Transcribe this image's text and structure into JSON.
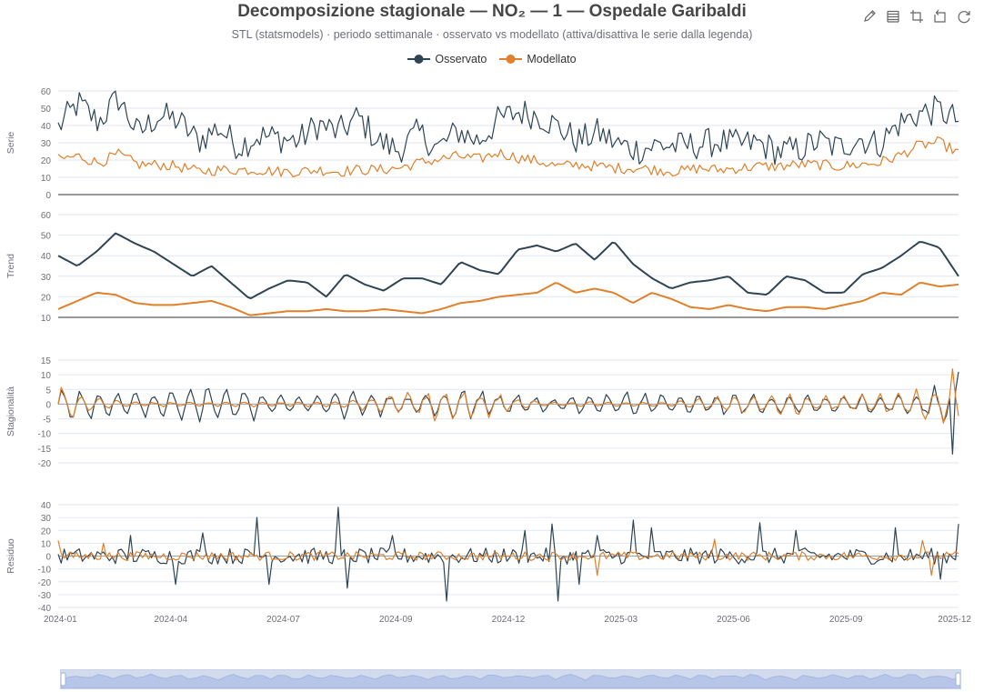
{
  "title": "Decomposizione stagionale — NO₂ — 1 — Ospedale Garibaldi",
  "subtitle": "STL (statsmodels) · periodo settimanale · osservato vs modellato (attiva/disattiva le serie dalla legenda)",
  "toolbox": {
    "icons": [
      "pencil-icon",
      "data-view-icon",
      "zoom-icon",
      "zoom-reset-icon",
      "restore-icon"
    ]
  },
  "colors": {
    "observed": "#2f4554",
    "modeled": "#e0802a",
    "grid": "#e0e6f1",
    "axis": "#6e7079",
    "baseline": "#333333",
    "zoom_fill": "#d2dbee"
  },
  "legend": {
    "placement": "top-center",
    "items": [
      {
        "label": "Osservato",
        "color": "#2f4554"
      },
      {
        "label": "Modellato",
        "color": "#e0802a"
      }
    ]
  },
  "x_axis": {
    "ticks": [
      "2024-01",
      "2024-04",
      "2024-07",
      "2024-09",
      "2024-12",
      "2025-03",
      "2025-06",
      "2025-09",
      "2025-12"
    ],
    "range": [
      "2024-01-01",
      "2025-12-31"
    ]
  },
  "chart_data": [
    {
      "type": "line",
      "ylabel": "Serie",
      "ylim": [
        0,
        60
      ],
      "yticks": [
        0,
        10,
        20,
        30,
        40,
        50,
        60
      ],
      "grid": true,
      "kind": "series",
      "series": [
        {
          "name": "Osservato",
          "anchors": [
            38,
            52,
            41,
            55,
            34,
            45,
            42,
            30,
            38,
            27,
            33,
            32,
            30,
            40,
            35,
            44,
            30,
            25,
            35,
            26,
            36,
            30,
            42,
            47,
            45,
            38,
            30,
            35,
            28,
            25,
            28,
            27,
            28,
            30,
            28,
            29,
            24,
            25,
            30,
            26,
            32,
            28,
            40,
            46,
            48,
            42
          ],
          "amp": 11
        },
        {
          "name": "Modellato",
          "anchors": [
            20,
            22,
            18,
            23,
            17,
            17,
            16,
            13,
            14,
            14,
            14,
            13,
            13,
            14,
            13,
            14,
            14,
            15,
            18,
            20,
            22,
            20,
            24,
            21,
            19,
            16,
            17,
            16,
            15,
            15,
            14,
            13,
            15,
            14,
            15,
            16,
            16,
            17,
            17,
            16,
            17,
            18,
            22,
            28,
            30,
            24
          ],
          "amp": 4
        }
      ]
    },
    {
      "type": "line",
      "ylabel": "Trend",
      "ylim": [
        10,
        60
      ],
      "yticks": [
        10,
        20,
        30,
        40,
        50,
        60
      ],
      "grid": true,
      "kind": "trend",
      "series": [
        {
          "name": "Osservato",
          "anchors": [
            40,
            35,
            42,
            51,
            46,
            42,
            36,
            30,
            35,
            27,
            19,
            24,
            28,
            27,
            20,
            31,
            26,
            23,
            29,
            29,
            26,
            37,
            33,
            31,
            43,
            45,
            42,
            46,
            38,
            47,
            36,
            29,
            24,
            27,
            28,
            30,
            22,
            21,
            30,
            28,
            22,
            22,
            31,
            34,
            40,
            47,
            44,
            30
          ],
          "amp": 0
        },
        {
          "name": "Modellato",
          "anchors": [
            14,
            18,
            22,
            21,
            17,
            16,
            16,
            17,
            18,
            15,
            11,
            12,
            13,
            13,
            14,
            13,
            13,
            14,
            13,
            12,
            14,
            17,
            18,
            20,
            21,
            22,
            27,
            22,
            24,
            22,
            17,
            22,
            19,
            15,
            14,
            16,
            14,
            13,
            15,
            15,
            14,
            16,
            18,
            22,
            21,
            27,
            25,
            26
          ],
          "amp": 0
        }
      ]
    },
    {
      "type": "line",
      "ylabel": "Stagionalità",
      "ylim": [
        -20,
        15
      ],
      "yticks": [
        -20,
        -15,
        -10,
        -5,
        0,
        5,
        10,
        15
      ],
      "grid": true,
      "kind": "season",
      "series": [
        {
          "name": "Osservato",
          "envelope": [
            7,
            6,
            5,
            5,
            6,
            8,
            8,
            7,
            6,
            5,
            3,
            4,
            6,
            5,
            5,
            5,
            6,
            7,
            6,
            5,
            3,
            3,
            5,
            6,
            5,
            5,
            4,
            5,
            5,
            4,
            4,
            4,
            4,
            4,
            5,
            5,
            7,
            10
          ],
          "end": [
            -17,
            11
          ]
        },
        {
          "name": "Modellato",
          "envelope": [
            7,
            5,
            2,
            1,
            1,
            1,
            1,
            1,
            1,
            1,
            1,
            1,
            2,
            3,
            5,
            6,
            7,
            6,
            5,
            3,
            1,
            1,
            1,
            1,
            1,
            1,
            2,
            3,
            4,
            5,
            5,
            4,
            3,
            4,
            5,
            6,
            8,
            10
          ],
          "end": [
            12,
            -4
          ]
        }
      ]
    },
    {
      "type": "line",
      "ylabel": "Residuo",
      "ylim": [
        -40,
        40
      ],
      "yticks": [
        -40,
        -30,
        -20,
        -10,
        0,
        10,
        20,
        30,
        40
      ],
      "grid": true,
      "kind": "resid",
      "series": [
        {
          "name": "Osservato",
          "amp": 9,
          "spikes": [
            [
              0.08,
              16
            ],
            [
              0.13,
              -22
            ],
            [
              0.16,
              18
            ],
            [
              0.22,
              30
            ],
            [
              0.235,
              35
            ],
            [
              0.235,
              -22
            ],
            [
              0.31,
              38
            ],
            [
              0.32,
              -25
            ],
            [
              0.37,
              16
            ],
            [
              0.43,
              -28
            ],
            [
              0.43,
              -35
            ],
            [
              0.52,
              20
            ],
            [
              0.55,
              25
            ],
            [
              0.555,
              -35
            ],
            [
              0.58,
              -22
            ],
            [
              0.6,
              16
            ],
            [
              0.64,
              28
            ],
            [
              0.66,
              22
            ],
            [
              0.78,
              26
            ],
            [
              0.82,
              20
            ],
            [
              0.93,
              22
            ],
            [
              0.98,
              -18
            ],
            [
              1.0,
              25
            ]
          ]
        },
        {
          "name": "Modellato",
          "amp": 5,
          "spikes": [
            [
              0.0,
              12
            ],
            [
              0.05,
              10
            ],
            [
              0.6,
              -15
            ],
            [
              0.73,
              13
            ],
            [
              0.96,
              12
            ],
            [
              0.97,
              -15
            ]
          ]
        }
      ]
    }
  ]
}
